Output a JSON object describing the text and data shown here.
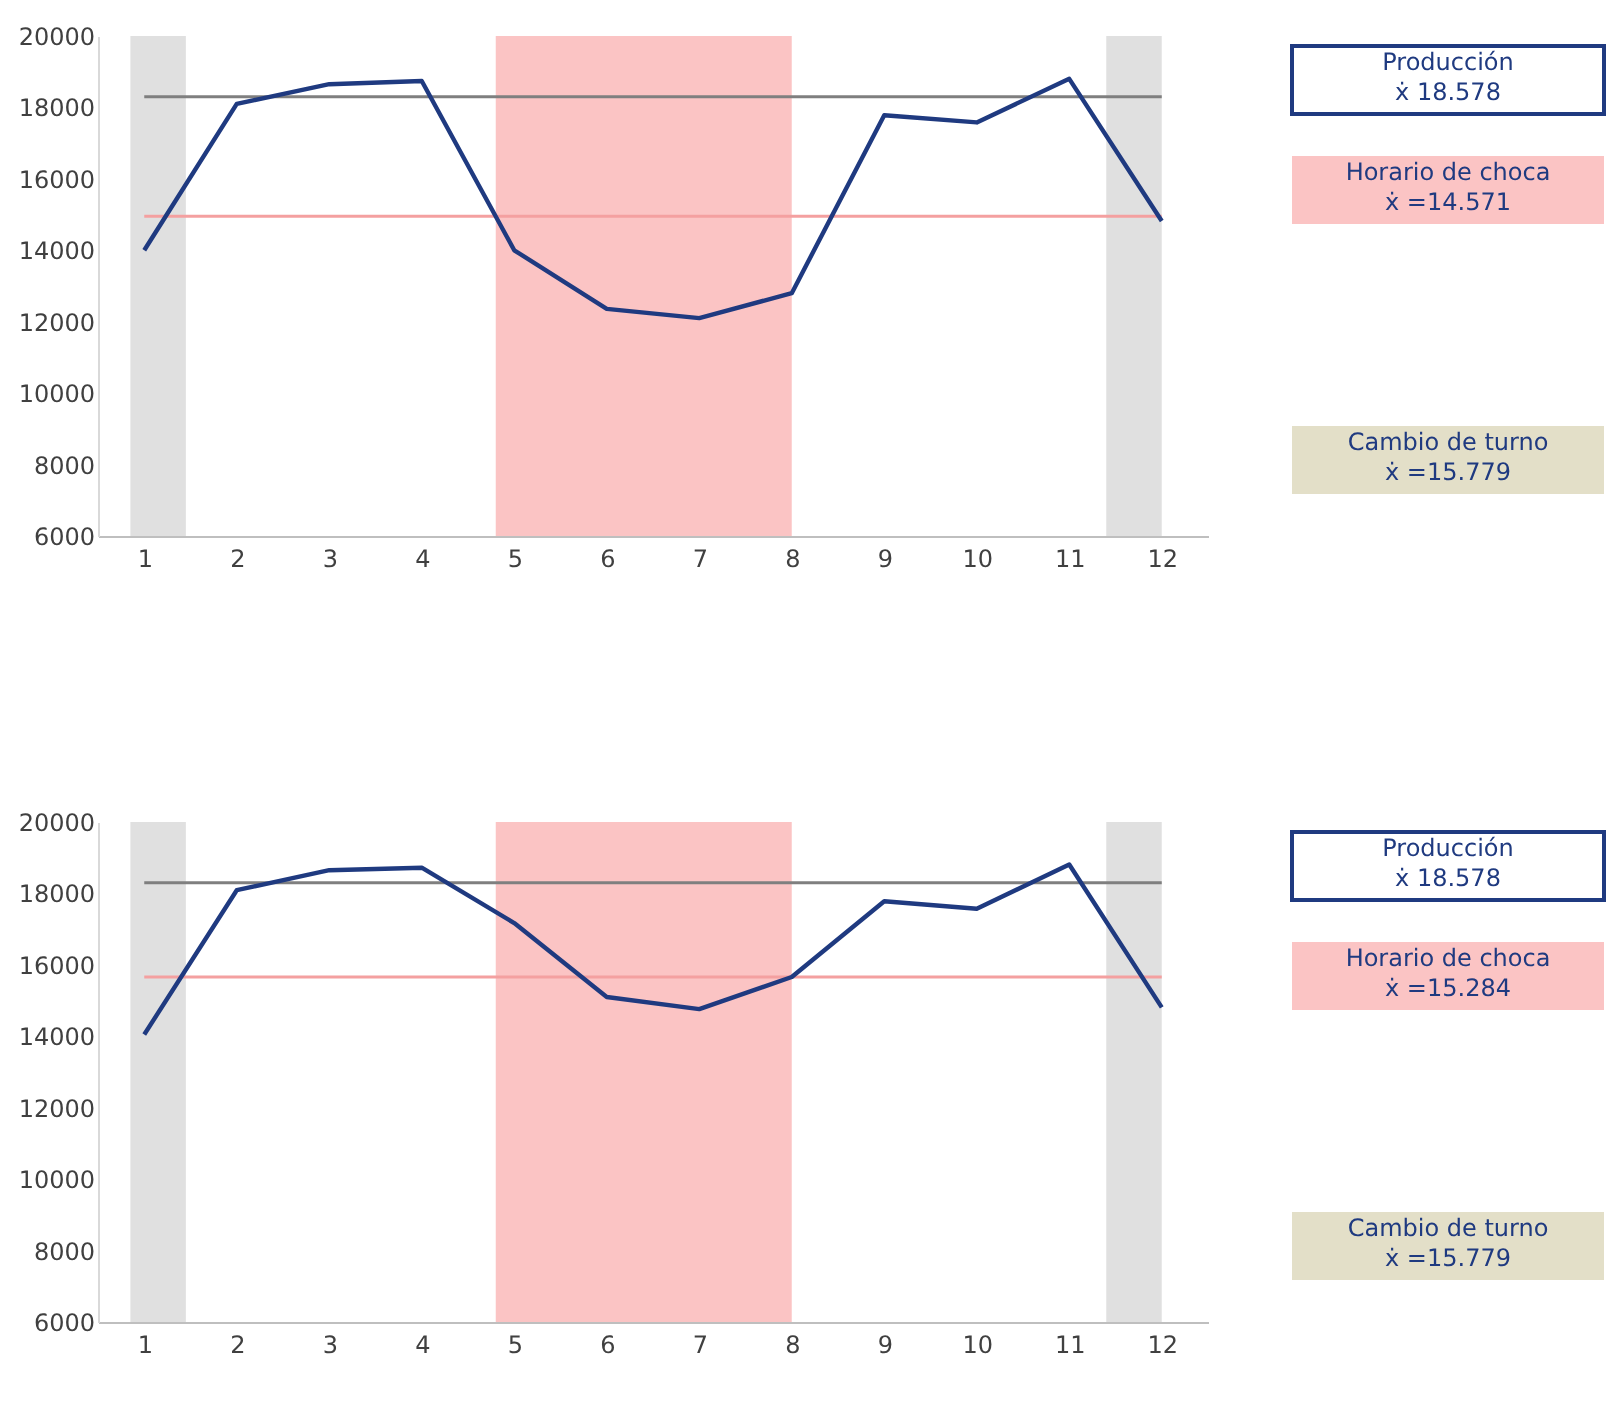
{
  "chart_data": [
    {
      "type": "line",
      "x": [
        1,
        2,
        3,
        4,
        5,
        6,
        7,
        8,
        9,
        10,
        11,
        12
      ],
      "xlim": [
        0.5,
        12.5
      ],
      "xticks": [
        1,
        2,
        3,
        4,
        5,
        6,
        7,
        8,
        9,
        10,
        11,
        12
      ],
      "ylim": [
        6000,
        20000
      ],
      "yticks": [
        6000,
        8000,
        10000,
        12000,
        14000,
        16000,
        18000,
        20000
      ],
      "grid": false,
      "line_style": "solid",
      "series": [
        {
          "color": "#1f3a80",
          "values": [
            14000,
            18100,
            18650,
            18740,
            14000,
            12360,
            12100,
            12800,
            17780,
            17580,
            18800,
            14820
          ]
        }
      ],
      "ref_lines": [
        {
          "axis": "y",
          "value": 18300,
          "color": "#7f7f7f"
        },
        {
          "axis": "y",
          "value": 14950,
          "color": "#f4a0a0"
        }
      ],
      "bands": [
        {
          "axis": "x",
          "from": 0.85,
          "to": 1.45,
          "color": "#e0e0e0"
        },
        {
          "axis": "x",
          "from": 4.8,
          "to": 8.0,
          "color": "#fbc4c4"
        },
        {
          "axis": "x",
          "from": 11.4,
          "to": 12.0,
          "color": "#e0e0e0"
        }
      ],
      "annotations": [
        "Producción\nẋ 18.578",
        "Horario de choca\nẋ =14.571",
        "Cambio de turno\nẋ =15.779"
      ]
    },
    {
      "type": "line",
      "x": [
        1,
        2,
        3,
        4,
        5,
        6,
        7,
        8,
        9,
        10,
        11,
        12
      ],
      "xlim": [
        0.5,
        12.5
      ],
      "xticks": [
        1,
        2,
        3,
        4,
        5,
        6,
        7,
        8,
        9,
        10,
        11,
        12
      ],
      "ylim": [
        6000,
        20000
      ],
      "yticks": [
        6000,
        8000,
        10000,
        12000,
        14000,
        16000,
        18000,
        20000
      ],
      "grid": false,
      "line_style": "solid",
      "series": [
        {
          "color": "#1f3a80",
          "values": [
            14050,
            18090,
            18650,
            18720,
            17170,
            15100,
            14760,
            15660,
            17780,
            17570,
            18810,
            14810
          ]
        }
      ],
      "ref_lines": [
        {
          "axis": "y",
          "value": 18300,
          "color": "#7f7f7f"
        },
        {
          "axis": "y",
          "value": 15660,
          "color": "#f4a0a0"
        }
      ],
      "bands": [
        {
          "axis": "x",
          "from": 0.85,
          "to": 1.45,
          "color": "#e0e0e0"
        },
        {
          "axis": "x",
          "from": 4.8,
          "to": 8.0,
          "color": "#fbc4c4"
        },
        {
          "axis": "x",
          "from": 11.4,
          "to": 12.0,
          "color": "#e0e0e0"
        }
      ],
      "annotations": [
        "Producción\nẋ 18.578",
        "Horario de choca\nẋ =15.284",
        "Cambio de turno\nẋ =15.779"
      ]
    }
  ]
}
